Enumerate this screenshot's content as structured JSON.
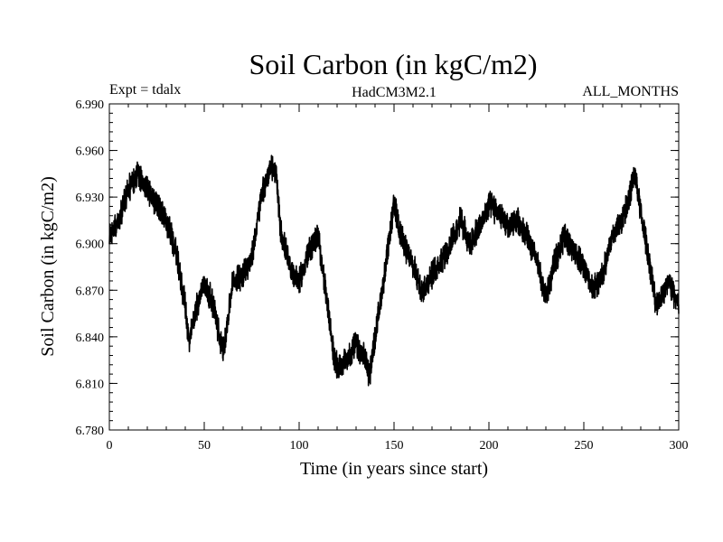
{
  "chart_data": {
    "type": "line",
    "title": "Soil Carbon (in kgC/m2)",
    "subtitle_left": "Expt = tdalx",
    "subtitle_center": "HadCM3M2.1",
    "subtitle_right": "ALL_MONTHS",
    "xlabel": "Time (in years since start)",
    "ylabel": "Soil Carbon (in kgC/m2)",
    "xlim": [
      0,
      300
    ],
    "ylim": [
      6.78,
      6.99
    ],
    "xticks": [
      "0",
      "50",
      "100",
      "150",
      "200",
      "250",
      "300"
    ],
    "yticks": [
      "6.780",
      "6.810",
      "6.840",
      "6.870",
      "6.900",
      "6.930",
      "6.960",
      "6.990"
    ],
    "grid": false,
    "series": [
      {
        "name": "Soil Carbon",
        "color": "#000000",
        "x": [
          0,
          5,
          10,
          15,
          20,
          25,
          30,
          35,
          40,
          42,
          45,
          50,
          55,
          58,
          60,
          65,
          70,
          75,
          80,
          85,
          88,
          90,
          95,
          100,
          105,
          110,
          115,
          118,
          120,
          125,
          130,
          135,
          137,
          140,
          145,
          150,
          155,
          160,
          165,
          170,
          175,
          180,
          185,
          190,
          195,
          200,
          205,
          210,
          215,
          220,
          225,
          230,
          235,
          240,
          245,
          250,
          255,
          260,
          265,
          270,
          275,
          277,
          280,
          285,
          288,
          290,
          295,
          300
        ],
        "values": [
          6.905,
          6.915,
          6.935,
          6.945,
          6.935,
          6.925,
          6.915,
          6.895,
          6.86,
          6.835,
          6.855,
          6.875,
          6.86,
          6.84,
          6.83,
          6.875,
          6.88,
          6.89,
          6.93,
          6.95,
          6.945,
          6.91,
          6.885,
          6.875,
          6.895,
          6.905,
          6.86,
          6.83,
          6.82,
          6.825,
          6.835,
          6.825,
          6.815,
          6.84,
          6.88,
          6.925,
          6.9,
          6.885,
          6.87,
          6.88,
          6.89,
          6.9,
          6.915,
          6.9,
          6.91,
          6.925,
          6.92,
          6.91,
          6.915,
          6.905,
          6.89,
          6.865,
          6.89,
          6.905,
          6.895,
          6.885,
          6.87,
          6.88,
          6.905,
          6.915,
          6.935,
          6.945,
          6.92,
          6.885,
          6.86,
          6.865,
          6.875,
          6.86
        ]
      }
    ]
  }
}
